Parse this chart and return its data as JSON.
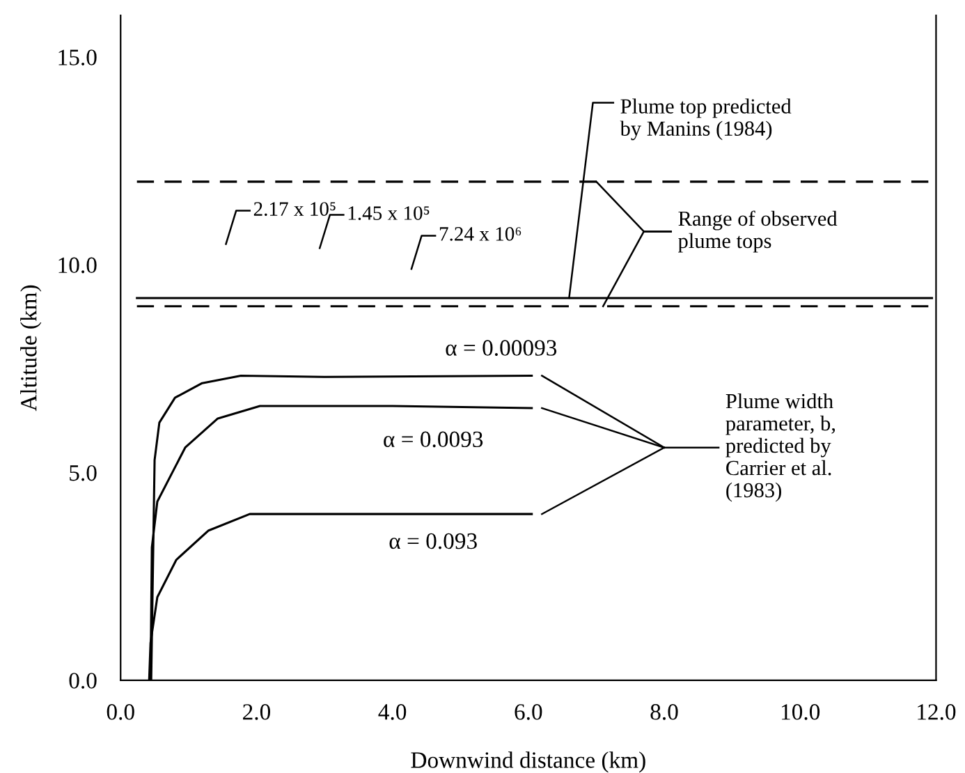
{
  "chart_data": {
    "type": "line",
    "xlabel": "Downwind distance (km)",
    "ylabel": "Altitude (km)",
    "xlim": [
      0,
      12
    ],
    "ylim": [
      0,
      16
    ],
    "xticks": [
      {
        "value": 0,
        "label": "0.0"
      },
      {
        "value": 2,
        "label": "2.0"
      },
      {
        "value": 4,
        "label": "4.0"
      },
      {
        "value": 6,
        "label": "6.0"
      },
      {
        "value": 8,
        "label": "8.0"
      },
      {
        "value": 10,
        "label": "10.0"
      },
      {
        "value": 12,
        "label": "12.0"
      }
    ],
    "yticks": [
      {
        "value": 0,
        "label": "0.0"
      },
      {
        "value": 5,
        "label": "5.0"
      },
      {
        "value": 10,
        "label": "10.0"
      },
      {
        "value": 15,
        "label": "15.0"
      }
    ],
    "grid": false,
    "legend": false,
    "marker": "none",
    "line_style": "solid",
    "series": [
      {
        "name": "α = 0.00093",
        "color": "#000000",
        "x": [
          0.45,
          0.5,
          0.57,
          0.8,
          1.2,
          1.77,
          3.0,
          6.05
        ],
        "values": [
          0.0,
          5.3,
          6.2,
          6.8,
          7.15,
          7.33,
          7.3,
          7.33
        ]
      },
      {
        "name": "α = 0.0093",
        "color": "#000000",
        "x": [
          0.44,
          0.46,
          0.54,
          0.95,
          1.43,
          2.05,
          4.0,
          6.05
        ],
        "values": [
          0.0,
          3.2,
          4.3,
          5.6,
          6.3,
          6.6,
          6.6,
          6.55
        ]
      },
      {
        "name": "α = 0.093",
        "color": "#000000",
        "x": [
          0.42,
          0.44,
          0.54,
          0.82,
          1.29,
          1.9,
          4.0,
          6.05
        ],
        "values": [
          0.0,
          0.9,
          2.0,
          2.9,
          3.6,
          4.0,
          4.0,
          4.0
        ]
      }
    ],
    "ref_lines": [
      {
        "axis": "y",
        "value": 9.2,
        "label": "Plume top predicted by Manins (1984)",
        "line_style": "solid",
        "color": "#000000"
      },
      {
        "axis": "y",
        "value": 12.0,
        "label": "Range of observed plume tops",
        "line_style": "dashed",
        "color": "#000000"
      },
      {
        "axis": "y",
        "value": 9.0,
        "label": null,
        "line_style": "dashed",
        "color": "#000000"
      }
    ],
    "annotations": [
      "2.17 x 10⁵",
      "1.45 x 10⁵",
      "7.24 x 10⁶",
      "Plume width parameter, b, predicted by Carrier et al. (1983)"
    ]
  }
}
